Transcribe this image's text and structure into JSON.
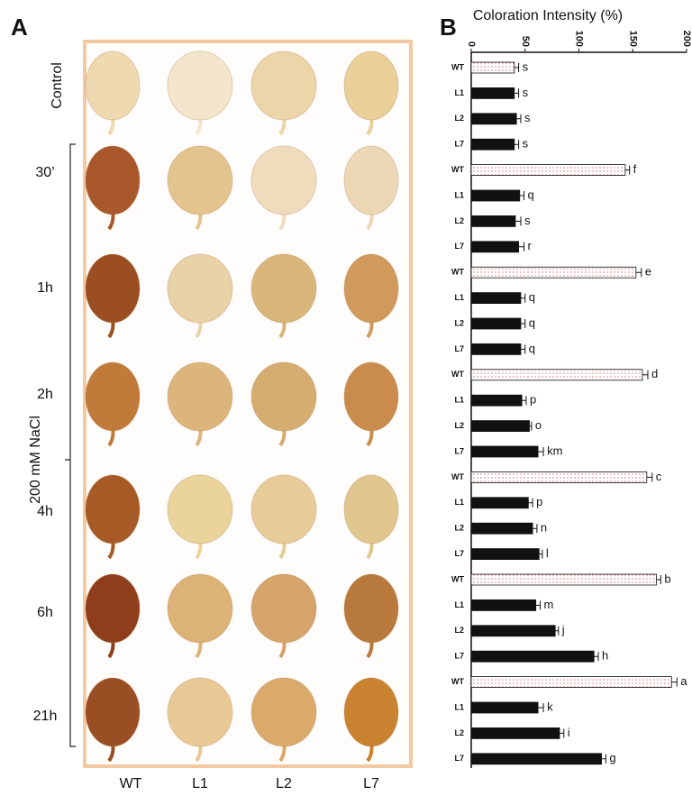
{
  "panel_a": {
    "label": "A",
    "treatment": "200 mM NaCl",
    "rows": [
      "Control",
      "30’",
      "1h",
      "2h",
      "4h",
      "6h",
      "21h"
    ],
    "columns": [
      "WT",
      "L1",
      "L2",
      "L7"
    ]
  },
  "chart_data": {
    "type": "hbar",
    "panel": "B",
    "x_label": "Coloration Intensity  (%)",
    "xlim": [
      0,
      200
    ],
    "xticks": [
      0,
      50,
      100,
      150,
      200
    ],
    "categories": [
      "WT",
      "L1",
      "L2",
      "L7",
      "WT",
      "L1",
      "L2",
      "L7",
      "WT",
      "L1",
      "L2",
      "L7",
      "WT",
      "L1",
      "L2",
      "L7",
      "WT",
      "L1",
      "L2",
      "L7",
      "WT",
      "L1",
      "L2",
      "L7",
      "WT",
      "L1",
      "L2",
      "L7"
    ],
    "values": [
      40,
      40,
      42,
      40,
      143,
      45,
      41,
      44,
      153,
      46,
      46,
      46,
      159,
      47,
      54,
      62,
      163,
      53,
      57,
      63,
      172,
      60,
      78,
      114,
      186,
      62,
      82,
      121
    ],
    "errors": [
      4,
      4,
      4,
      4,
      4,
      4,
      5,
      5,
      5,
      4,
      4,
      4,
      5,
      4,
      2,
      5,
      5,
      4,
      4,
      3,
      4,
      4,
      3,
      4,
      5,
      5,
      4,
      4
    ],
    "letters": [
      "s",
      "s",
      "s",
      "s",
      "f",
      "q",
      "s",
      "r",
      "e",
      "q",
      "q",
      "q",
      "d",
      "p",
      "o",
      "km",
      "c",
      "p",
      "n",
      "l",
      "b",
      "m",
      "j",
      "h",
      "a",
      "k",
      "i",
      "g"
    ],
    "colors": [
      "dots",
      "#111",
      "#111",
      "#111",
      "dots",
      "#111",
      "#111",
      "#111",
      "dots",
      "#111",
      "#111",
      "#111",
      "dots",
      "#111",
      "#111",
      "#111",
      "dots",
      "#111",
      "#111",
      "#111",
      "dots",
      "#111",
      "#111",
      "#111",
      "dots",
      "#111",
      "#111",
      "#111"
    ]
  }
}
